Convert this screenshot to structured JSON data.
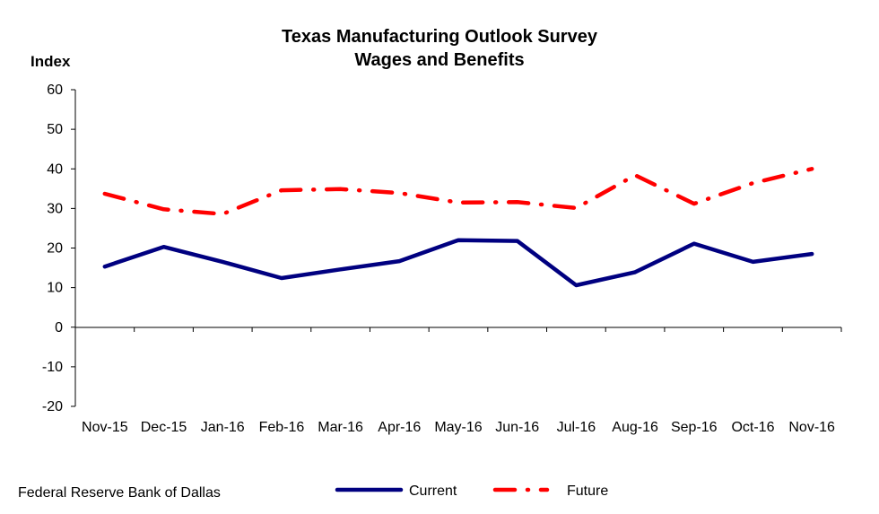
{
  "chart_data": {
    "type": "line",
    "title": "Texas Manufacturing Outlook Survey",
    "subtitle": "Wages and Benefits",
    "ylabel": "Index",
    "xlabel": "",
    "ylim": [
      -20,
      60
    ],
    "yticks": [
      -20,
      -10,
      0,
      10,
      20,
      30,
      40,
      50,
      60
    ],
    "categories": [
      "Nov-15",
      "Dec-15",
      "Jan-16",
      "Feb-16",
      "Mar-16",
      "Apr-16",
      "May-16",
      "Jun-16",
      "Jul-16",
      "Aug-16",
      "Sep-16",
      "Oct-16",
      "Nov-16"
    ],
    "series": [
      {
        "name": "Current",
        "color": "#000080",
        "style": "solid",
        "values": [
          15.3,
          20.3,
          16.5,
          12.4,
          14.6,
          16.7,
          22.0,
          21.8,
          10.6,
          13.9,
          21.1,
          16.5,
          18.5
        ]
      },
      {
        "name": "Future",
        "color": "#ff0000",
        "style": "dash-dot",
        "values": [
          33.7,
          29.8,
          28.6,
          34.6,
          34.9,
          33.9,
          31.5,
          31.6,
          30.1,
          38.4,
          31.2,
          36.4,
          40.0
        ]
      }
    ],
    "grid": false,
    "legend_position": "bottom"
  },
  "footer": {
    "source": "Federal Reserve Bank of Dallas"
  }
}
